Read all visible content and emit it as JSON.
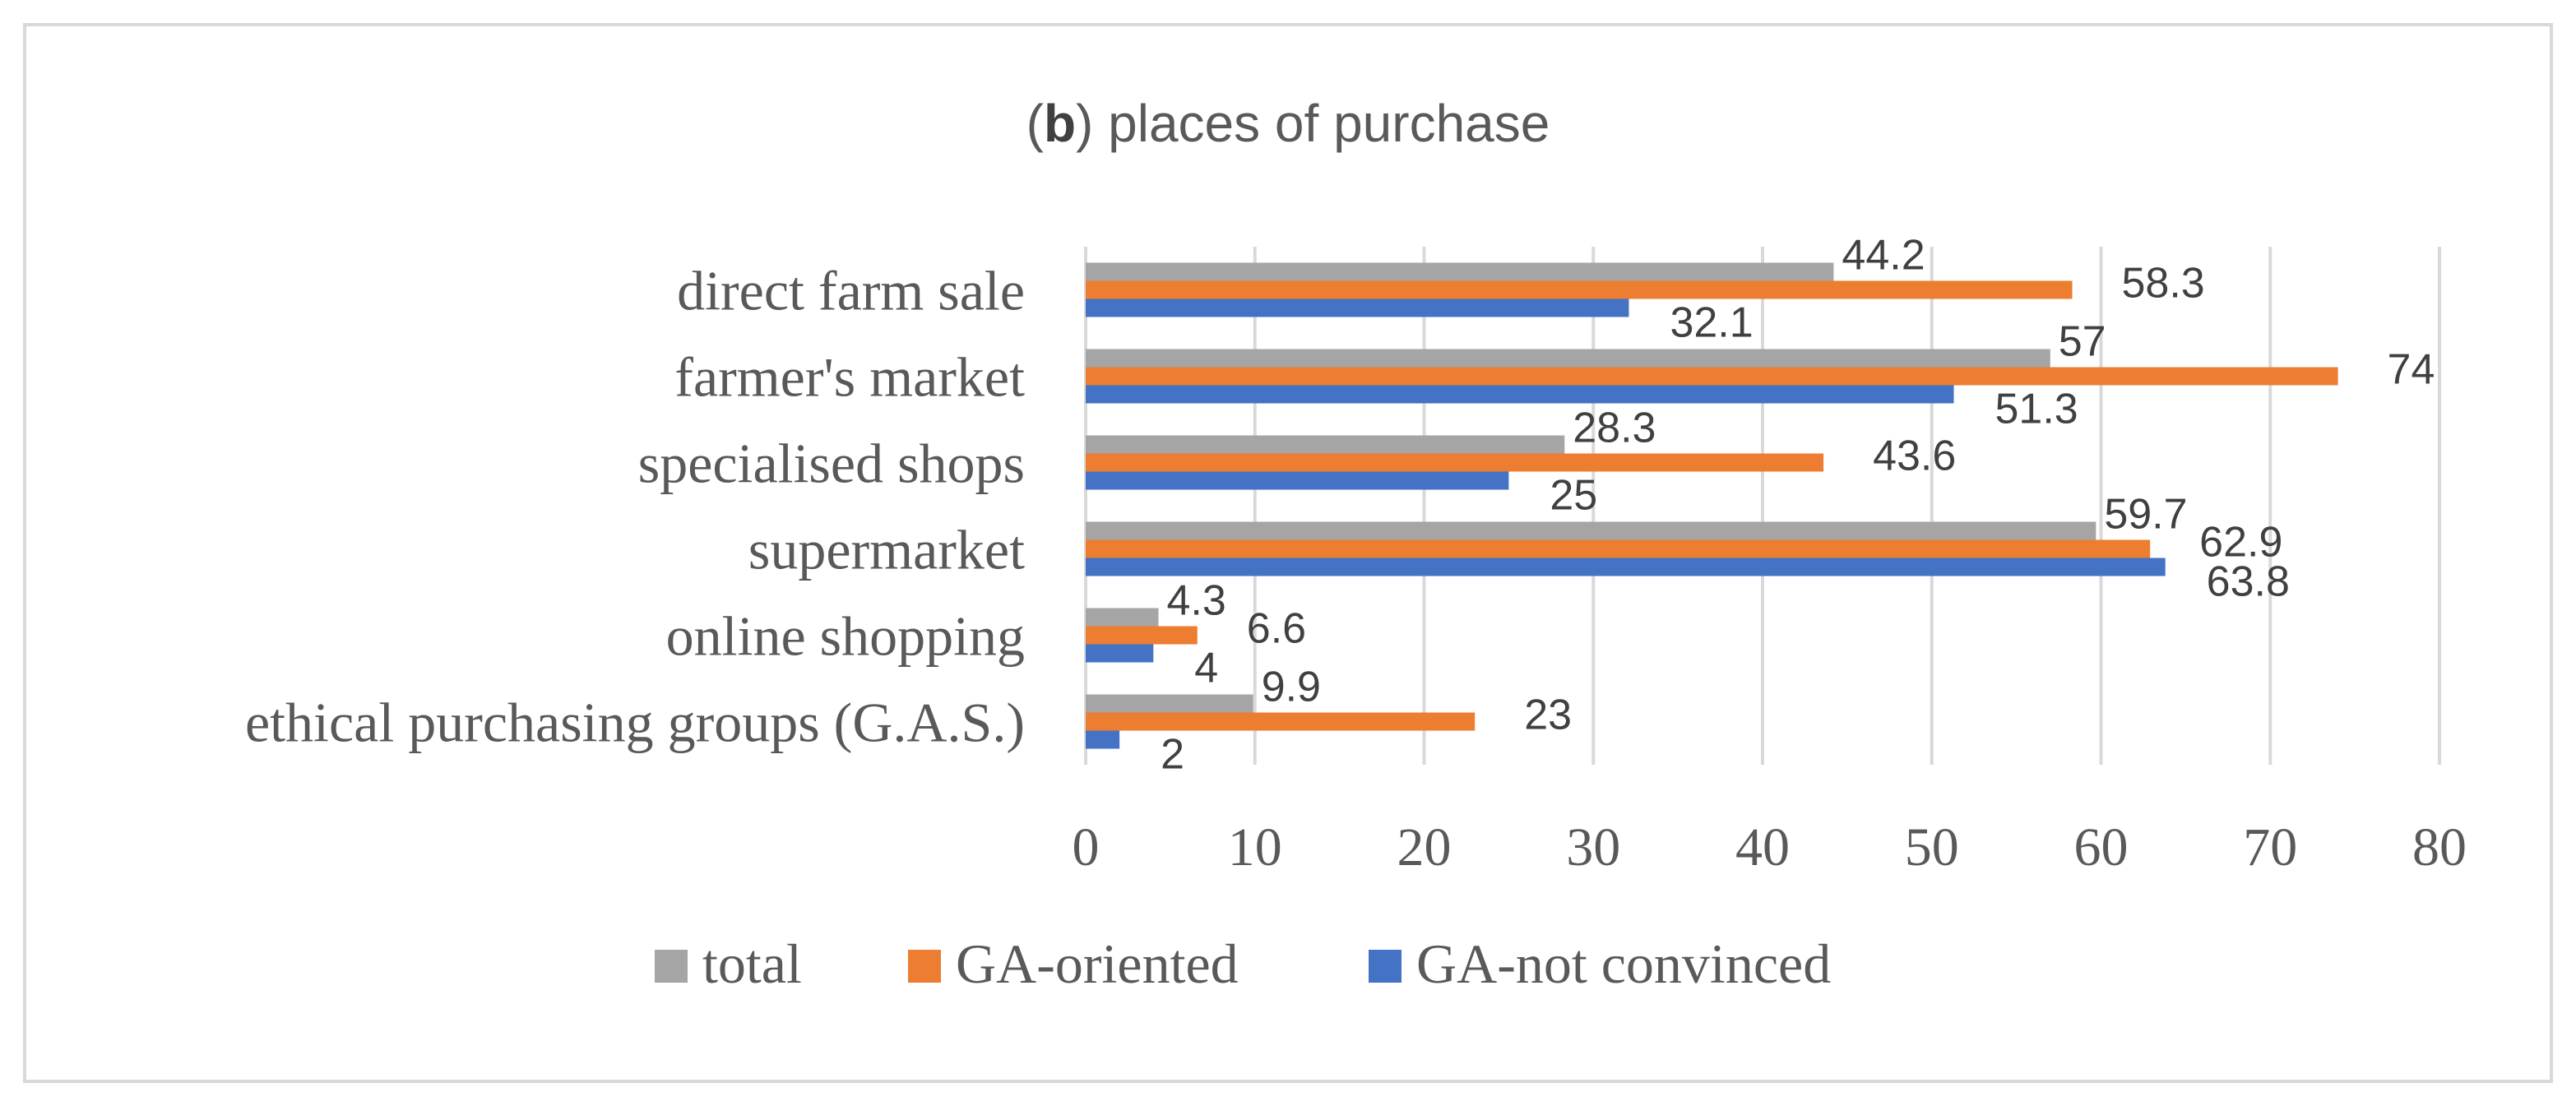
{
  "chart_data": {
    "type": "bar",
    "orientation": "horizontal",
    "title_prefix": "(",
    "title_bold": "b",
    "title_rest": ") places of purchase",
    "categories": [
      "direct farm sale",
      "farmer's market",
      "specialised shops",
      "supermarket",
      "online shopping",
      "ethical purchasing groups (G.A.S.)"
    ],
    "series": [
      {
        "name": "total",
        "color": "#a5a5a5",
        "values": [
          44.2,
          57,
          28.3,
          59.7,
          4.3,
          9.9
        ]
      },
      {
        "name": "GA-oriented",
        "color": "#ed7d31",
        "values": [
          58.3,
          74,
          43.6,
          62.9,
          6.6,
          23
        ]
      },
      {
        "name": "GA-not convinced",
        "color": "#4472c4",
        "values": [
          32.1,
          51.3,
          25,
          63.8,
          4,
          2
        ]
      }
    ],
    "xlim": [
      0,
      80
    ],
    "ticks": [
      "0",
      "10",
      "20",
      "30",
      "40",
      "50",
      "60",
      "70",
      "80"
    ],
    "grid": true,
    "legend_position": "bottom",
    "xlabel": "",
    "ylabel": ""
  }
}
